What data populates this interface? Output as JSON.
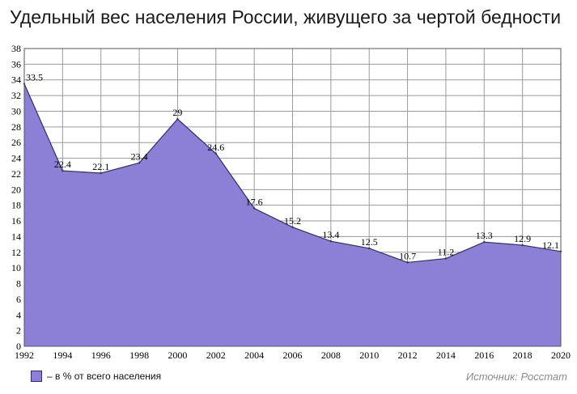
{
  "chart_data": {
    "type": "area",
    "title": "Удельный вес населения России, живущего за чертой бедности",
    "x": [
      1992,
      1994,
      1996,
      1998,
      2000,
      2002,
      2004,
      2006,
      2008,
      2010,
      2012,
      2014,
      2016,
      2018,
      2020
    ],
    "series": [
      {
        "name": "– в % от всего населения",
        "values": [
          33.5,
          22.4,
          22.1,
          23.4,
          29,
          24.6,
          17.6,
          15.2,
          13.4,
          12.5,
          10.7,
          11.2,
          13.3,
          12.9,
          12.1
        ]
      }
    ],
    "data_labels": [
      "33.5",
      "22.4",
      "22.1",
      "23.4",
      "29",
      "24.6",
      "17.6",
      "15.2",
      "13.4",
      "12.5",
      "10.7",
      "11.2",
      "13.3",
      "12.9",
      "12.1"
    ],
    "xlabel": "",
    "ylabel": "",
    "xlim": [
      1992,
      2020
    ],
    "ylim": [
      0,
      38
    ],
    "x_ticks": [
      "1992",
      "1994",
      "1996",
      "1998",
      "2000",
      "2002",
      "2004",
      "2006",
      "2008",
      "2010",
      "2012",
      "2014",
      "2016",
      "2018",
      "2020"
    ],
    "y_ticks": [
      "0",
      "2",
      "4",
      "6",
      "8",
      "10",
      "12",
      "14",
      "16",
      "18",
      "20",
      "22",
      "24",
      "26",
      "28",
      "30",
      "32",
      "34",
      "36",
      "38"
    ],
    "grid": true,
    "legend_position": "bottom-left",
    "colors": {
      "fill": "#8b80d6",
      "line": "#2b2b7a",
      "grid": "#9a9a9a"
    }
  },
  "source_text": "Источник: Росстат"
}
